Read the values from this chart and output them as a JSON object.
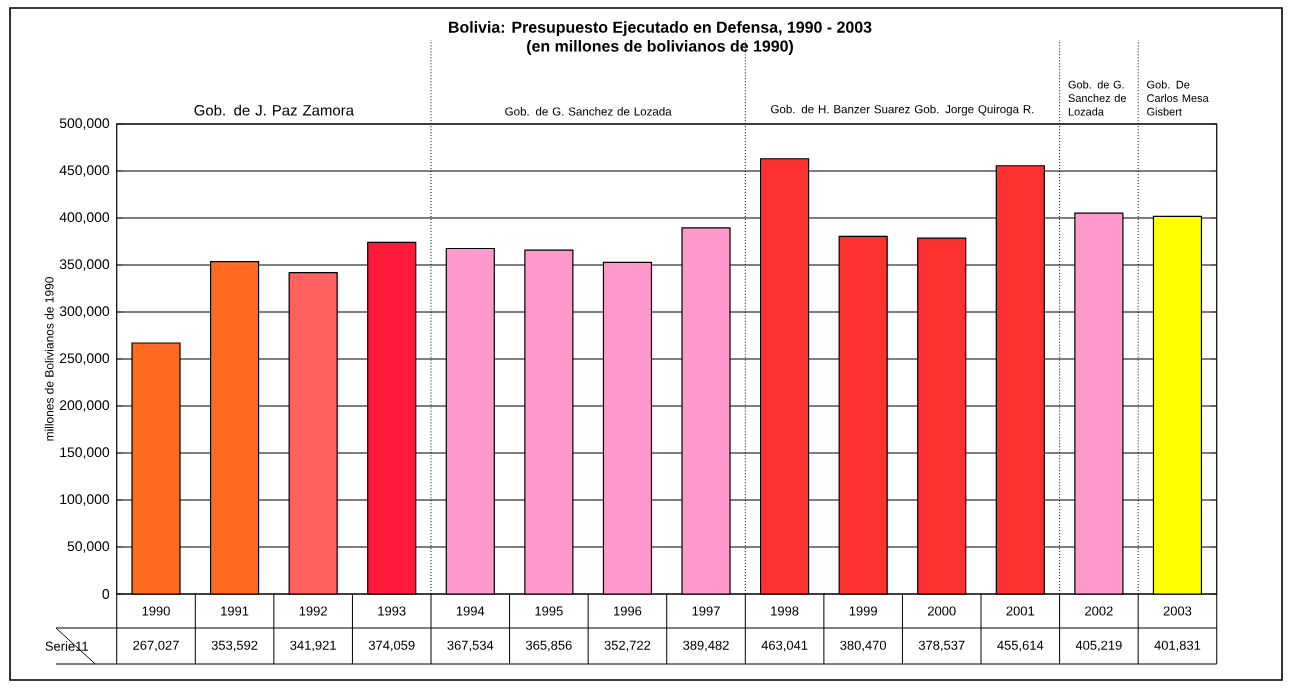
{
  "chart_data": {
    "type": "bar",
    "title": "Bolivia: Presupuesto Ejecutado en Defensa, 1990 - 2003",
    "subtitle": "(en millones de bolivianos de 1990)",
    "ylabel": "millones de Bolivianos de 1990",
    "categories": [
      "1990",
      "1991",
      "1992",
      "1993",
      "1994",
      "1995",
      "1996",
      "1997",
      "1998",
      "1999",
      "2000",
      "2001",
      "2002",
      "2003"
    ],
    "series": [
      {
        "name": "Serie11",
        "values": [
          267027,
          353592,
          341921,
          374059,
          367534,
          365856,
          352722,
          389482,
          463041,
          380470,
          378537,
          455614,
          405219,
          401831
        ],
        "value_labels": [
          "267,027",
          "353,592",
          "341,921",
          "374,059",
          "367,534",
          "365,856",
          "352,722",
          "389,482",
          "463,041",
          "380,470",
          "378,537",
          "455,614",
          "405,219",
          "401,831"
        ],
        "colors": [
          "#ff6a20",
          "#ff6a20",
          "#ff6060",
          "#ff1a3c",
          "#ff99cc",
          "#ff99cc",
          "#ff99cc",
          "#ff99cc",
          "#ff3030",
          "#ff3030",
          "#ff3030",
          "#ff3030",
          "#ff99cc",
          "#ffff00"
        ]
      }
    ],
    "ylim": [
      0,
      500000
    ],
    "yticks": [
      {
        "value": 0,
        "label": "0"
      },
      {
        "value": 50000,
        "label": "50,000"
      },
      {
        "value": 100000,
        "label": "100,000"
      },
      {
        "value": 150000,
        "label": "150,000"
      },
      {
        "value": 200000,
        "label": "200,000"
      },
      {
        "value": 250000,
        "label": "250,000"
      },
      {
        "value": 300000,
        "label": "300,000"
      },
      {
        "value": 350000,
        "label": "350,000"
      },
      {
        "value": 400000,
        "label": "400,000"
      },
      {
        "value": 450000,
        "label": "450,000"
      },
      {
        "value": 500000,
        "label": "500,000"
      }
    ],
    "annotations": [
      "Gob.  de J. Paz Zamora",
      "Gob.  de G. Sanchez de Lozada",
      "Gob.  de H. Banzer Suarez Gob. Jorge Quiroga R.",
      "Gob.  de G. Sanchez de Lozada",
      "Gob.  De Carlos Mesa Gisbert"
    ],
    "grid": "y"
  }
}
